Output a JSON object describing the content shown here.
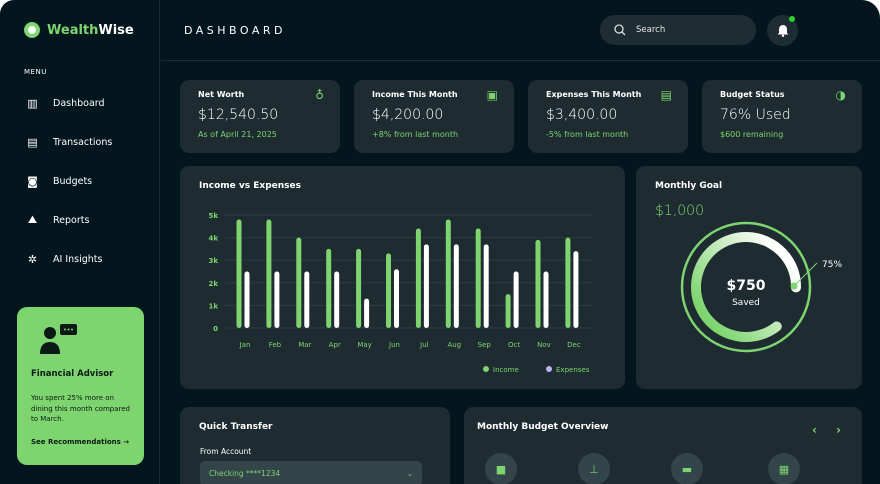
{
  "brand": {
    "part1": "Wealth",
    "part2": "Wise"
  },
  "sidebar": {
    "menu_label": "MENU",
    "items": [
      {
        "label": "Dashboard",
        "icon": "bar-chart-icon"
      },
      {
        "label": "Transactions",
        "icon": "receipt-icon"
      },
      {
        "label": "Budgets",
        "icon": "wallet-icon"
      },
      {
        "label": "Reports",
        "icon": "report-chart-icon"
      },
      {
        "label": "AI Insights",
        "icon": "brain-icon"
      }
    ],
    "advisor": {
      "title": "Financial Advisor",
      "text": "You spent 25% more on dining this month compared to March.",
      "link": "See Recommendations →"
    }
  },
  "header": {
    "title": "DASHBOARD",
    "search_placeholder": "Search",
    "notification_badge": true
  },
  "stats": [
    {
      "label": "Net Worth",
      "value": "$12,540.50",
      "sub": "As of April 21, 2025",
      "icon": "money-bag-icon"
    },
    {
      "label": "Income This Month",
      "value": "$4,200.00",
      "sub": "+8% from last month",
      "icon": "cash-icon"
    },
    {
      "label": "Expenses This Month",
      "value": "$3,400.00",
      "sub": "-5% from last month",
      "icon": "receipt-icon"
    },
    {
      "label": "Budget Status",
      "value": "76% Used",
      "sub": "$600 remaining",
      "icon": "pie-icon"
    }
  ],
  "chart_data": {
    "type": "bar",
    "title": "Income vs Expenses",
    "categories": [
      "Jan",
      "Feb",
      "Mar",
      "Apr",
      "May",
      "Jun",
      "Jul",
      "Aug",
      "Sep",
      "Oct",
      "Nov",
      "Dec"
    ],
    "yticks": [
      "0",
      "1k",
      "2k",
      "3k",
      "4k",
      "5k"
    ],
    "ylim": [
      0,
      5000
    ],
    "grid": true,
    "legend": "bottom-right",
    "series": [
      {
        "name": "Income",
        "color": "#7ed56f",
        "values": [
          4800,
          4800,
          4000,
          3500,
          3500,
          3300,
          4400,
          4800,
          4400,
          1500,
          3900,
          4000
        ]
      },
      {
        "name": "Expenses",
        "color": "#ffffff",
        "legend_color": "#b9b5f0",
        "values": [
          2500,
          2500,
          2500,
          2500,
          1300,
          2600,
          3700,
          3700,
          3700,
          2500,
          2500,
          3400
        ]
      }
    ]
  },
  "goal": {
    "title": "Monthly Goal",
    "target": "$1,000",
    "saved": "$750",
    "saved_label": "Saved",
    "percent_label": "75%",
    "percent": 75
  },
  "transfer": {
    "title": "Quick Transfer",
    "from_label": "From Account",
    "from_value": "Checking ****1234"
  },
  "budget_overview": {
    "title": "Monthly Budget Overview",
    "categories": [
      {
        "icon": "shopping-bag-icon"
      },
      {
        "icon": "dining-icon"
      },
      {
        "icon": "bills-icon"
      },
      {
        "icon": "transport-icon"
      }
    ]
  },
  "colors": {
    "accent": "#7ed56f",
    "bg": "#03161d",
    "card": "#1e2b31"
  }
}
